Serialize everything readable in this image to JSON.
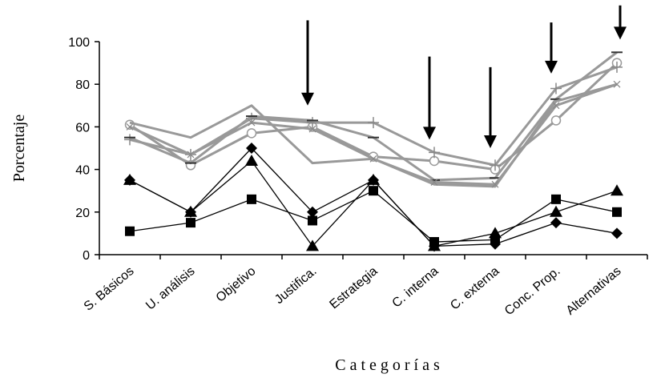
{
  "chart_data": {
    "type": "line",
    "title": "",
    "xlabel": "Categorías",
    "ylabel": "Porcentaje",
    "ylim": [
      0,
      100
    ],
    "yticks": [
      0,
      20,
      40,
      60,
      80,
      100
    ],
    "grid": false,
    "legend": "none",
    "categories": [
      "S. Básicos",
      "U. análisis",
      "Objetivo",
      "Justifica.",
      "Estrategia",
      "C. interna",
      "C. externa",
      "Conc. Prop.",
      "Alternativas"
    ],
    "series": [
      {
        "color": "#999999",
        "marker": "circle-open",
        "values": [
          61,
          42,
          57,
          60,
          46,
          44,
          40,
          63,
          90
        ]
      },
      {
        "color": "#999999",
        "marker": "plus",
        "values": [
          54,
          47,
          64,
          62,
          62,
          48,
          42,
          78,
          88
        ]
      },
      {
        "color": "#999999",
        "marker": "dash",
        "values": [
          55,
          43,
          65,
          63,
          55,
          35,
          36,
          73,
          95
        ]
      },
      {
        "color": "#999999",
        "marker": "none",
        "values": [
          62,
          55,
          70,
          43,
          45,
          33,
          32,
          72,
          80
        ]
      },
      {
        "color": "#999999",
        "marker": "x",
        "values": [
          60,
          47,
          62,
          59,
          45,
          34,
          33,
          70,
          80
        ]
      },
      {
        "color": "#000000",
        "marker": "triangle",
        "values": [
          35,
          20,
          44,
          4,
          35,
          4,
          10,
          20,
          30
        ]
      },
      {
        "color": "#000000",
        "marker": "diamond",
        "values": [
          35,
          20,
          50,
          20,
          35,
          4,
          5,
          15,
          10
        ]
      },
      {
        "color": "#000000",
        "marker": "square",
        "values": [
          11,
          15,
          26,
          16,
          30,
          6,
          7,
          26,
          20
        ]
      }
    ],
    "annotations": [
      {
        "type": "arrow-down",
        "category_index": 3,
        "from_y": 110,
        "to_y": 70
      },
      {
        "type": "arrow-down",
        "category_index": 5,
        "from_y": 93,
        "to_y": 54
      },
      {
        "type": "arrow-down",
        "category_index": 6,
        "from_y": 88,
        "to_y": 50
      },
      {
        "type": "arrow-down",
        "category_index": 7,
        "from_y": 109,
        "to_y": 85
      },
      {
        "type": "arrow-down",
        "category_index": 8,
        "from_y": 117,
        "to_y": 101
      }
    ]
  }
}
